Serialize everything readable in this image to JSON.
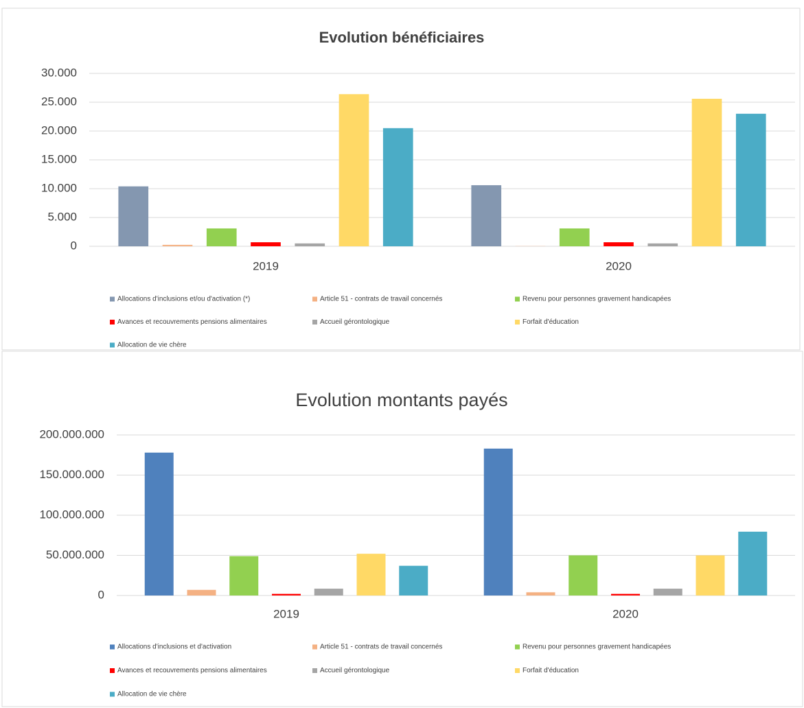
{
  "chart_data": [
    {
      "type": "bar",
      "title": "Evolution bénéficiaires",
      "categories": [
        "2019",
        "2020"
      ],
      "series": [
        {
          "name": "Allocations d'inclusions et/ou d'activation (*)",
          "color": "#8497b0",
          "values": [
            10400,
            10600
          ]
        },
        {
          "name": "Article 51 - contrats de travail concernés",
          "color": "#f4b183",
          "values": [
            250,
            30
          ]
        },
        {
          "name": "Revenu pour personnes gravement handicapées",
          "color": "#92d050",
          "values": [
            3100,
            3100
          ]
        },
        {
          "name": "Avances et recouvrements pensions alimentaires",
          "color": "#ff0000",
          "values": [
            700,
            700
          ]
        },
        {
          "name": "Accueil gérontologique",
          "color": "#a5a5a5",
          "values": [
            500,
            500
          ]
        },
        {
          "name": "Forfait d'éducation",
          "color": "#ffd966",
          "values": [
            26400,
            25600
          ]
        },
        {
          "name": "Allocation de vie chère",
          "color": "#4bacc6",
          "values": [
            20500,
            23000
          ]
        }
      ],
      "ylim": [
        0,
        30000
      ],
      "yticks": [
        0,
        {
          "value": 5000,
          "label": "5.000"
        },
        {
          "value": 10000,
          "label": "10.000"
        },
        {
          "value": 15000,
          "label": "15.000"
        },
        {
          "value": 20000,
          "label": "20.000"
        },
        {
          "value": 25000,
          "label": "25.000"
        },
        {
          "value": 30000,
          "label": "30.000"
        }
      ],
      "grid": true
    },
    {
      "type": "bar",
      "title": "Evolution montants payés",
      "categories": [
        "2019",
        "2020"
      ],
      "series": [
        {
          "name": "Allocations d'inclusions et d'activation",
          "color": "#4f81bd",
          "values": [
            178000000,
            183000000
          ]
        },
        {
          "name": "Article 51 - contrats de travail concernés",
          "color": "#f4b183",
          "values": [
            7000000,
            4000000
          ]
        },
        {
          "name": "Revenu pour personnes gravement handicapées",
          "color": "#92d050",
          "values": [
            49000000,
            50000000
          ]
        },
        {
          "name": "Avances et recouvrements pensions alimentaires",
          "color": "#ff0000",
          "values": [
            2000000,
            2000000
          ]
        },
        {
          "name": "Accueil gérontologique",
          "color": "#a5a5a5",
          "values": [
            8500000,
            8500000
          ]
        },
        {
          "name": "Forfait d'éducation",
          "color": "#ffd966",
          "values": [
            52000000,
            50000000
          ]
        },
        {
          "name": "Allocation de vie chère",
          "color": "#4bacc6",
          "values": [
            37000000,
            79500000
          ]
        }
      ],
      "ylim": [
        0,
        200000000
      ],
      "yticks": [
        0,
        {
          "value": 50000000,
          "label": "50.000.000"
        },
        {
          "value": 100000000,
          "label": "100.000.000"
        },
        {
          "value": 150000000,
          "label": "150.000.000"
        },
        {
          "value": 200000000,
          "label": "200.000.000"
        }
      ],
      "grid": true
    }
  ]
}
